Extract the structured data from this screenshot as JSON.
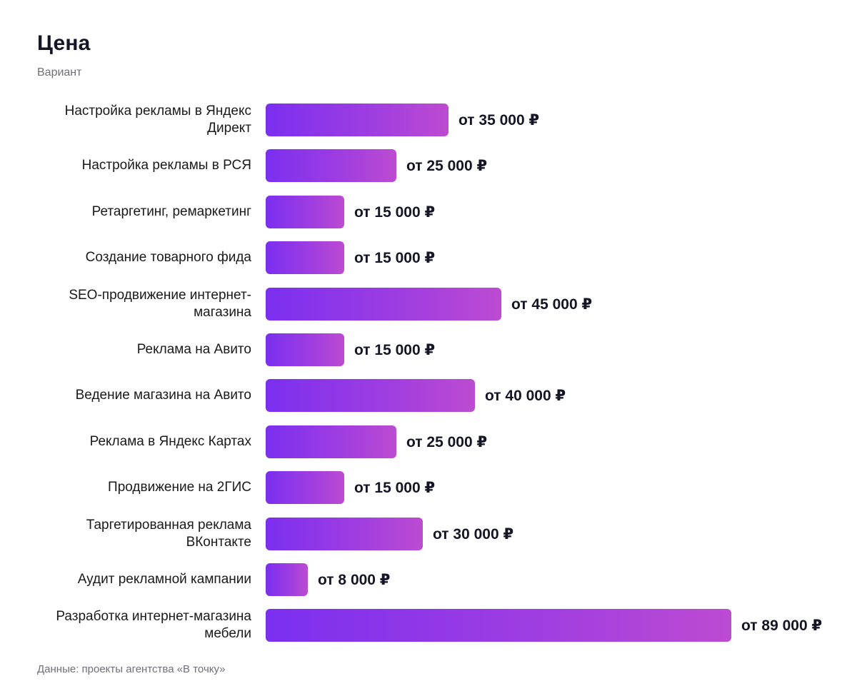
{
  "chart_data": {
    "type": "bar",
    "orientation": "horizontal",
    "title": "Цена",
    "subtitle": "Вариант",
    "source": "Данные: проекты агентства «В точку»",
    "value_prefix": "от",
    "currency": "₽",
    "xlim": [
      0,
      89000
    ],
    "colors": {
      "bar_start": "#7b2ff0",
      "bar_end": "#bd4bd1"
    },
    "categories": [
      "Настройка рекламы в Яндекс Директ",
      "Настройка рекламы в РСЯ",
      "Ретаргетинг, ремаркетинг",
      "Создание товарного фида",
      "SEO-продвижение интернет-магазина",
      "Реклама на Авито",
      "Ведение магазина на Авито",
      "Реклама в Яндекс Картах",
      "Продвижение на 2ГИС",
      "Таргетированная реклама ВКонтакте",
      "Аудит рекламной кампании",
      "Разработка интернет-магазина мебели"
    ],
    "values": [
      35000,
      25000,
      15000,
      15000,
      45000,
      15000,
      40000,
      25000,
      15000,
      30000,
      8000,
      89000
    ],
    "value_labels": [
      "от 35 000 ₽",
      "от 25 000 ₽",
      "от 15 000 ₽",
      "от 15 000 ₽",
      "от 45 000 ₽",
      "от 15 000 ₽",
      "от 40 000 ₽",
      "от 25 000 ₽",
      "от 15 000 ₽",
      "от 30 000 ₽",
      "от 8 000 ₽",
      "от 89 000 ₽"
    ]
  }
}
